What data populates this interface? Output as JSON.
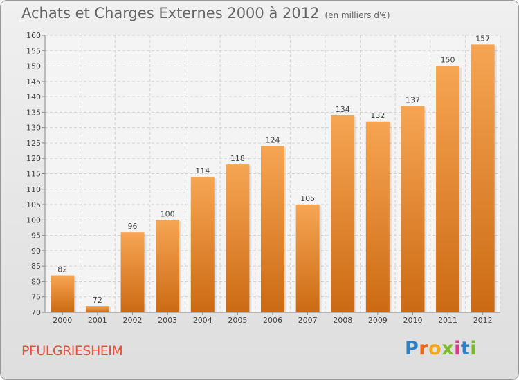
{
  "title": "Achats et Charges Externes 2000 à 2012",
  "subtitle": "(en milliers d'€)",
  "place": "PFULGRIESHEIM",
  "logo": {
    "letters": [
      "P",
      "r",
      "o",
      "x",
      "i",
      "t",
      "i"
    ],
    "colors": [
      "#2e7fc5",
      "#e86a1f",
      "#f2a81d",
      "#7abb2b",
      "#d63c8c",
      "#2e7fc5",
      "#7abb2b"
    ]
  },
  "chart_data": {
    "type": "bar",
    "categories": [
      "2000",
      "2001",
      "2002",
      "2003",
      "2004",
      "2005",
      "2006",
      "2007",
      "2008",
      "2009",
      "2010",
      "2011",
      "2012"
    ],
    "values": [
      82,
      72,
      96,
      100,
      114,
      118,
      124,
      105,
      134,
      132,
      137,
      150,
      157
    ],
    "ylim": [
      70,
      160
    ],
    "yticks": [
      70,
      75,
      80,
      85,
      90,
      95,
      100,
      105,
      110,
      115,
      120,
      125,
      130,
      135,
      140,
      145,
      150,
      155,
      160
    ],
    "grid": true,
    "bar_color_top": "#f6a553",
    "bar_color_bottom": "#cc6a14"
  }
}
